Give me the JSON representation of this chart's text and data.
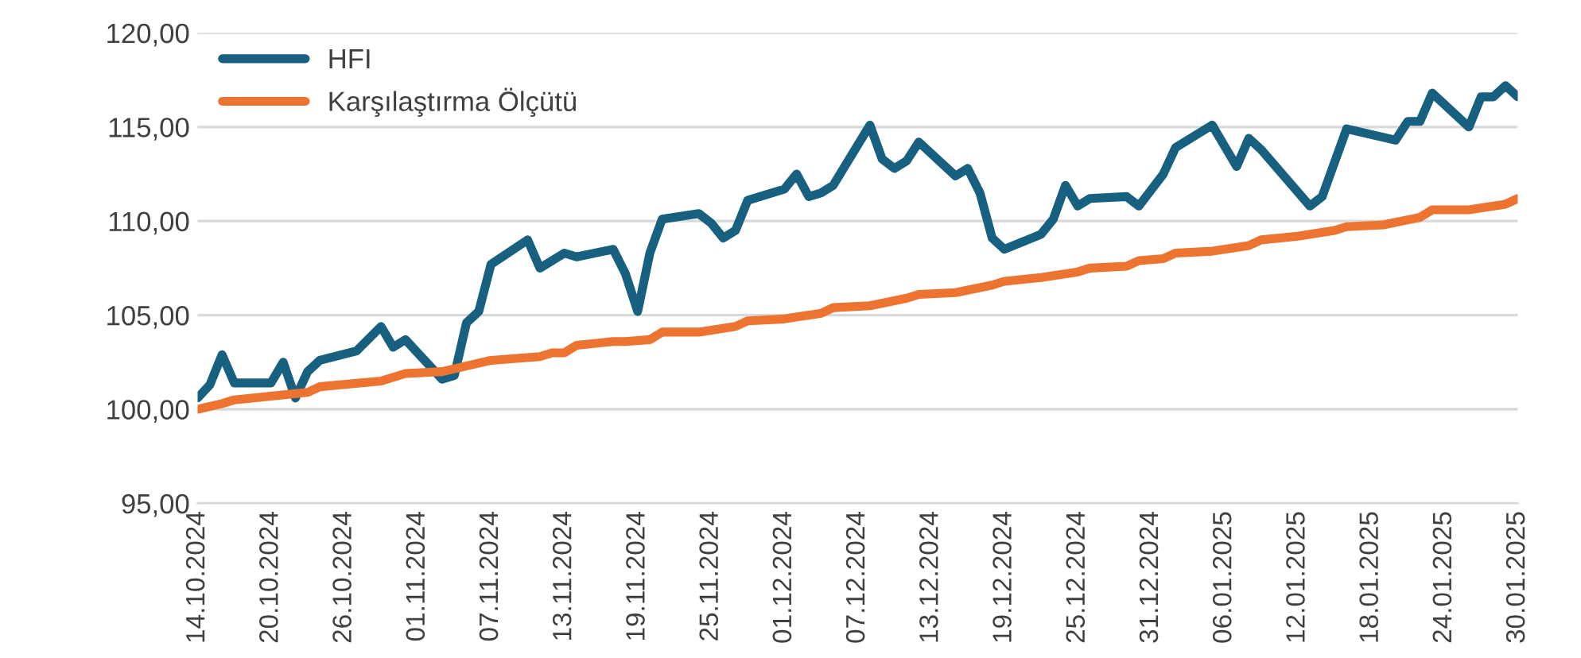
{
  "chart_data": {
    "type": "line",
    "series": [
      {
        "name": "HFI",
        "color": "#17607f",
        "x": [
          "2024-10-14",
          "2024-10-15",
          "2024-10-16",
          "2024-10-17",
          "2024-10-20",
          "2024-10-21",
          "2024-10-22",
          "2024-10-23",
          "2024-10-24",
          "2024-10-27",
          "2024-10-29",
          "2024-10-30",
          "2024-10-31",
          "2024-11-03",
          "2024-11-04",
          "2024-11-05",
          "2024-11-06",
          "2024-11-07",
          "2024-11-10",
          "2024-11-11",
          "2024-11-13",
          "2024-11-14",
          "2024-11-17",
          "2024-11-18",
          "2024-11-19",
          "2024-11-20",
          "2024-11-21",
          "2024-11-24",
          "2024-11-25",
          "2024-11-26",
          "2024-11-27",
          "2024-11-28",
          "2024-12-01",
          "2024-12-02",
          "2024-12-03",
          "2024-12-04",
          "2024-12-05",
          "2024-12-08",
          "2024-12-09",
          "2024-12-10",
          "2024-12-11",
          "2024-12-12",
          "2024-12-15",
          "2024-12-16",
          "2024-12-17",
          "2024-12-18",
          "2024-12-19",
          "2024-12-22",
          "2024-12-23",
          "2024-12-24",
          "2024-12-25",
          "2024-12-26",
          "2024-12-29",
          "2024-12-30",
          "2025-01-01",
          "2025-01-02",
          "2025-01-05",
          "2025-01-06",
          "2025-01-07",
          "2025-01-08",
          "2025-01-09",
          "2025-01-13",
          "2025-01-14",
          "2025-01-16",
          "2025-01-20",
          "2025-01-21",
          "2025-01-22",
          "2025-01-23",
          "2025-01-26",
          "2025-01-27",
          "2025-01-28",
          "2025-01-29",
          "2025-01-30"
        ],
        "values": [
          100.6,
          101.3,
          102.9,
          101.4,
          101.4,
          102.5,
          100.6,
          102.0,
          102.6,
          103.1,
          104.4,
          103.3,
          103.7,
          101.6,
          101.8,
          104.6,
          105.2,
          107.7,
          109.0,
          107.5,
          108.3,
          108.1,
          108.5,
          107.2,
          105.2,
          108.3,
          110.1,
          110.4,
          109.9,
          109.1,
          109.5,
          111.1,
          111.7,
          112.5,
          111.3,
          111.5,
          111.9,
          115.1,
          113.3,
          112.8,
          113.2,
          114.2,
          112.4,
          112.8,
          111.5,
          109.1,
          108.5,
          109.3,
          110.1,
          111.9,
          110.8,
          111.2,
          111.3,
          110.8,
          112.5,
          113.9,
          115.1,
          114.0,
          112.9,
          114.4,
          113.8,
          110.8,
          111.3,
          114.9,
          114.3,
          115.3,
          115.3,
          116.8,
          115.0,
          116.6,
          116.6,
          117.2,
          116.6
        ]
      },
      {
        "name": "Karşılaştırma Ölçütü",
        "color": "#ed7331",
        "x": [
          "2024-10-14",
          "2024-10-16",
          "2024-10-17",
          "2024-10-20",
          "2024-10-23",
          "2024-10-24",
          "2024-10-29",
          "2024-10-31",
          "2024-11-03",
          "2024-11-07",
          "2024-11-11",
          "2024-11-12",
          "2024-11-13",
          "2024-11-14",
          "2024-11-17",
          "2024-11-18",
          "2024-11-20",
          "2024-11-21",
          "2024-11-24",
          "2024-11-27",
          "2024-11-28",
          "2024-12-01",
          "2024-12-04",
          "2024-12-05",
          "2024-12-08",
          "2024-12-11",
          "2024-12-12",
          "2024-12-15",
          "2024-12-18",
          "2024-12-19",
          "2024-12-22",
          "2024-12-25",
          "2024-12-26",
          "2024-12-29",
          "2024-12-30",
          "2025-01-01",
          "2025-01-02",
          "2025-01-05",
          "2025-01-08",
          "2025-01-09",
          "2025-01-12",
          "2025-01-15",
          "2025-01-16",
          "2025-01-19",
          "2025-01-22",
          "2025-01-23",
          "2025-01-26",
          "2025-01-29",
          "2025-01-30"
        ],
        "values": [
          100.0,
          100.3,
          100.5,
          100.7,
          100.9,
          101.2,
          101.5,
          101.9,
          102.0,
          102.6,
          102.8,
          103.0,
          103.0,
          103.4,
          103.6,
          103.6,
          103.7,
          104.1,
          104.1,
          104.4,
          104.7,
          104.8,
          105.1,
          105.4,
          105.5,
          105.9,
          106.1,
          106.2,
          106.6,
          106.8,
          107.0,
          107.3,
          107.5,
          107.6,
          107.9,
          108.0,
          108.3,
          108.4,
          108.7,
          109.0,
          109.2,
          109.5,
          109.7,
          109.8,
          110.2,
          110.6,
          110.6,
          110.9,
          111.2
        ]
      }
    ],
    "xlim": [
      "2024-10-14",
      "2025-01-30"
    ],
    "xticks": [
      {
        "value": "2024-10-14",
        "label": "14.10.2024"
      },
      {
        "value": "2024-10-20",
        "label": "20.10.2024"
      },
      {
        "value": "2024-10-26",
        "label": "26.10.2024"
      },
      {
        "value": "2024-11-01",
        "label": "01.11.2024"
      },
      {
        "value": "2024-11-07",
        "label": "07.11.2024"
      },
      {
        "value": "2024-11-13",
        "label": "13.11.2024"
      },
      {
        "value": "2024-11-19",
        "label": "19.11.2024"
      },
      {
        "value": "2024-11-25",
        "label": "25.11.2024"
      },
      {
        "value": "2024-12-01",
        "label": "01.12.2024"
      },
      {
        "value": "2024-12-07",
        "label": "07.12.2024"
      },
      {
        "value": "2024-12-13",
        "label": "13.12.2024"
      },
      {
        "value": "2024-12-19",
        "label": "19.12.2024"
      },
      {
        "value": "2024-12-25",
        "label": "25.12.2024"
      },
      {
        "value": "2024-12-31",
        "label": "31.12.2024"
      },
      {
        "value": "2025-01-06",
        "label": "06.01.2025"
      },
      {
        "value": "2025-01-12",
        "label": "12.01.2025"
      },
      {
        "value": "2025-01-18",
        "label": "18.01.2025"
      },
      {
        "value": "2025-01-24",
        "label": "24.01.2025"
      },
      {
        "value": "2025-01-30",
        "label": "30.01.2025"
      }
    ],
    "ylim": [
      95,
      120
    ],
    "yticks": [
      {
        "value": 95,
        "label": "95,00"
      },
      {
        "value": 100,
        "label": "100,00"
      },
      {
        "value": 105,
        "label": "105,00"
      },
      {
        "value": 110,
        "label": "110,00"
      },
      {
        "value": 115,
        "label": "115,00"
      },
      {
        "value": 120,
        "label": "120,00"
      }
    ],
    "grid": "y",
    "legend": "top left",
    "marker": "none",
    "line_style": "solid"
  }
}
